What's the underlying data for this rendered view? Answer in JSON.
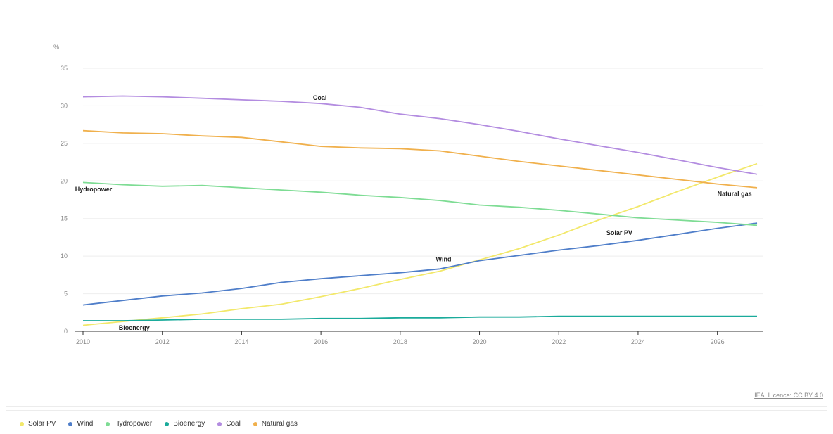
{
  "chart_data": {
    "type": "line",
    "ylabel": "%",
    "xlabel": "",
    "ylim": [
      0,
      35
    ],
    "xlim": [
      2010,
      2027
    ],
    "yticks": [
      "0",
      "5",
      "10",
      "15",
      "20",
      "25",
      "30",
      "35"
    ],
    "xticks": [
      "2010",
      "2012",
      "2014",
      "2016",
      "2018",
      "2020",
      "2022",
      "2024",
      "2026"
    ],
    "x": [
      2010,
      2011,
      2012,
      2013,
      2014,
      2015,
      2016,
      2017,
      2018,
      2019,
      2020,
      2021,
      2022,
      2023,
      2024,
      2025,
      2026,
      2027
    ],
    "series": [
      {
        "name": "Solar PV",
        "color": "#f2e86a",
        "label": "Solar PV",
        "values": [
          0.8,
          1.3,
          1.8,
          2.3,
          3.0,
          3.6,
          4.6,
          5.7,
          6.9,
          8.0,
          9.5,
          11.0,
          12.8,
          14.8,
          16.6,
          18.6,
          20.5,
          22.3
        ]
      },
      {
        "name": "Wind",
        "color": "#4f7ec9",
        "label": "Wind",
        "values": [
          3.5,
          4.1,
          4.7,
          5.1,
          5.7,
          6.5,
          7.0,
          7.4,
          7.8,
          8.3,
          9.4,
          10.1,
          10.8,
          11.4,
          12.1,
          12.9,
          13.7,
          14.4
        ]
      },
      {
        "name": "Hydropower",
        "color": "#7edc94",
        "label": "Hydropower",
        "values": [
          19.8,
          19.5,
          19.3,
          19.4,
          19.1,
          18.8,
          18.5,
          18.1,
          17.8,
          17.4,
          16.8,
          16.5,
          16.1,
          15.6,
          15.1,
          14.8,
          14.5,
          14.1
        ]
      },
      {
        "name": "Bioenergy",
        "color": "#1aab9b",
        "label": "Bioenergy",
        "values": [
          1.4,
          1.4,
          1.5,
          1.6,
          1.6,
          1.6,
          1.7,
          1.7,
          1.8,
          1.8,
          1.9,
          1.9,
          2.0,
          2.0,
          2.0,
          2.0,
          2.0,
          2.0
        ]
      },
      {
        "name": "Coal",
        "color": "#b38ce0",
        "label": "Coal",
        "values": [
          31.2,
          31.3,
          31.2,
          31.0,
          30.8,
          30.6,
          30.3,
          29.8,
          28.9,
          28.3,
          27.5,
          26.6,
          25.6,
          24.7,
          23.8,
          22.8,
          21.8,
          20.9
        ]
      },
      {
        "name": "Natural gas",
        "color": "#f0b04c",
        "label": "Natural gas",
        "values": [
          26.7,
          26.4,
          26.3,
          26.0,
          25.8,
          25.2,
          24.6,
          24.4,
          24.3,
          24.0,
          23.3,
          22.6,
          22.0,
          21.4,
          20.8,
          20.2,
          19.6,
          19.1
        ]
      }
    ],
    "annotations": [
      {
        "text": "Coal",
        "x": 2015.8,
        "y": 30.8
      },
      {
        "text": "Hydropower",
        "x": 2009.8,
        "y": 18.6
      },
      {
        "text": "Natural gas",
        "x": 2026.0,
        "y": 18.0
      },
      {
        "text": "Solar PV",
        "x": 2023.2,
        "y": 12.8
      },
      {
        "text": "Wind",
        "x": 2018.9,
        "y": 9.3
      },
      {
        "text": "Bioenergy",
        "x": 2010.9,
        "y": 0.2
      }
    ],
    "legend_position": "bottom-left",
    "grid": true
  },
  "footer": {
    "license": "IEA. Licence: CC BY 4.0"
  }
}
